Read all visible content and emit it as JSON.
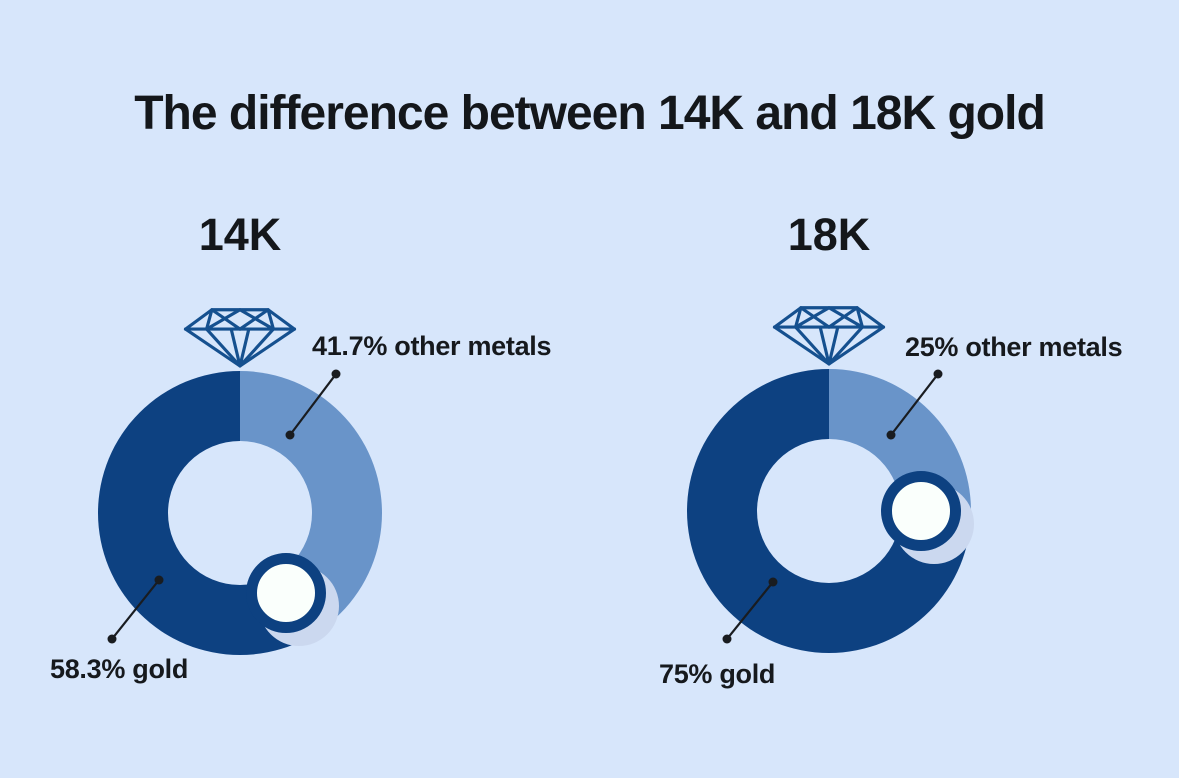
{
  "title": "The difference between 14K and 18K gold",
  "colors": {
    "background": "#d7e6fb",
    "gold_dark": "#0d4181",
    "other_light": "#6994c9",
    "diamond_stroke": "#15508f",
    "gem_fill": "#fafffc",
    "shadow": "#cbd8ef",
    "text": "#14171b"
  },
  "chart_data": [
    {
      "type": "pie",
      "subtype": "donut",
      "title": "14K",
      "start": "top",
      "gold_direction": "counterclockwise",
      "series": [
        {
          "name": "gold",
          "value": 58.3,
          "label": "58.3% gold"
        },
        {
          "name": "other metals",
          "value": 41.7,
          "label": "41.7% other metals"
        }
      ]
    },
    {
      "type": "pie",
      "subtype": "donut",
      "title": "18K",
      "start": "top",
      "gold_direction": "counterclockwise",
      "series": [
        {
          "name": "gold",
          "value": 75,
          "label": "75% gold"
        },
        {
          "name": "other metals",
          "value": 25,
          "label": "25% other metals"
        }
      ]
    }
  ]
}
